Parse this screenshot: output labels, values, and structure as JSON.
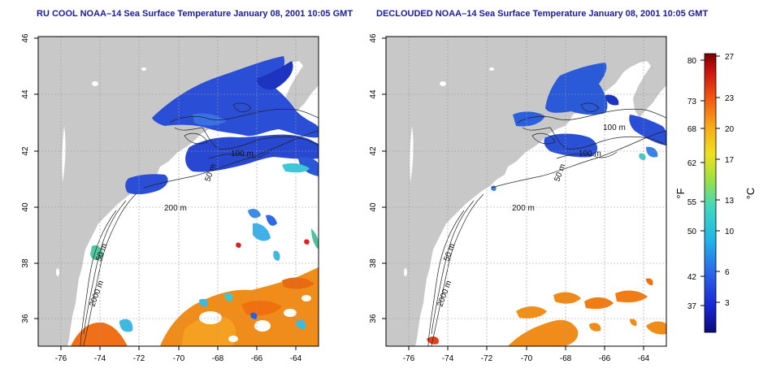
{
  "panels": [
    {
      "title": "RU COOL NOAA–14 Sea Surface Temperature January 08, 2001 10:05 GMT",
      "contours": [
        {
          "label": "100 m"
        },
        {
          "label": "50 m"
        },
        {
          "label": "200 m"
        },
        {
          "label": "50 m"
        },
        {
          "label": "2000 m"
        }
      ]
    },
    {
      "title": "DECLOUDED NOAA–14 Sea Surface Temperature January 08, 2001 10:05 GMT",
      "contours": [
        {
          "label": "100 m"
        },
        {
          "label": "100 m"
        },
        {
          "label": "50 m"
        },
        {
          "label": "200 m"
        },
        {
          "label": "50 m"
        },
        {
          "label": "2000 m"
        }
      ]
    }
  ],
  "axes": {
    "lon_ticks": [
      "-76",
      "-74",
      "-72",
      "-70",
      "-68",
      "-66",
      "-64"
    ],
    "lat_ticks": [
      "36",
      "38",
      "40",
      "42",
      "44",
      "46"
    ],
    "lon_range": [
      -77.5,
      -63
    ],
    "lat_range": [
      35,
      46
    ]
  },
  "colorbar": {
    "unit_f": "°F",
    "unit_c": "°C",
    "f_ticks": [
      "80",
      "73",
      "68",
      "62",
      "55",
      "50",
      "42",
      "37"
    ],
    "c_ticks": [
      "27",
      "23",
      "20",
      "17",
      "13",
      "10",
      "6",
      "3"
    ],
    "range_c": [
      0,
      28
    ]
  },
  "colors": {
    "land": "#c8c8c8",
    "title": "#1a1a9e",
    "cold": "#2a50d6",
    "warm": "#f08c1a"
  }
}
